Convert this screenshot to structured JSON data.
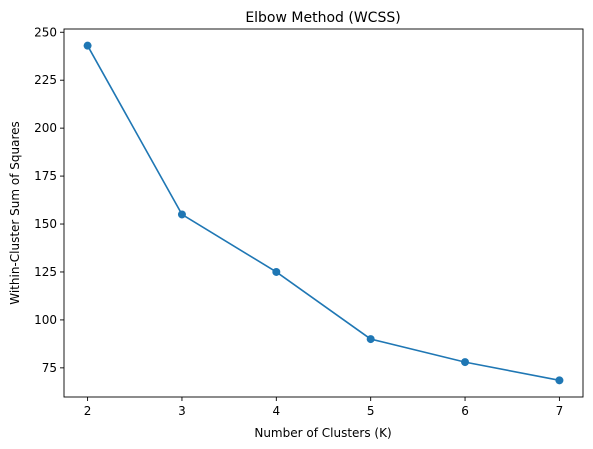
{
  "chart_data": {
    "type": "line",
    "title": "Elbow Method (WCSS)",
    "xlabel": "Number of Clusters (K)",
    "ylabel": "Within-Cluster Sum of Squares",
    "x": [
      2,
      3,
      4,
      5,
      6,
      7
    ],
    "series": [
      {
        "values": [
          243,
          155,
          125,
          90,
          78,
          68.5
        ],
        "color": "#1f77b4",
        "marker": "circle"
      }
    ],
    "xticks": [
      2,
      3,
      4,
      5,
      6,
      7
    ],
    "xtick_labels": [
      "2",
      "3",
      "4",
      "5",
      "6",
      "7"
    ],
    "yticks": [
      75,
      100,
      125,
      150,
      175,
      200,
      225,
      250
    ],
    "ytick_labels": [
      "75",
      "100",
      "125",
      "150",
      "175",
      "200",
      "225",
      "250"
    ],
    "xlim": [
      1.75,
      7.25
    ],
    "ylim": [
      59.8,
      251.7
    ],
    "grid": false,
    "legend": "none"
  }
}
